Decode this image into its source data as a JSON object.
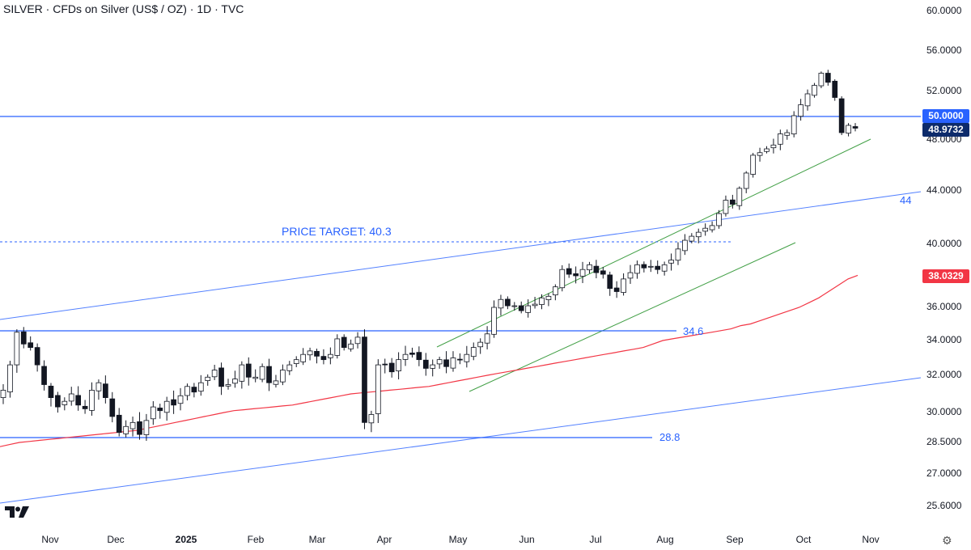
{
  "header": {
    "title": "SILVER · CFDs on Silver (US$ / OZ) · 1D · TVC"
  },
  "chart_data": {
    "type": "candlestick",
    "symbol": "SILVER",
    "ylim": [
      25.6,
      60.0
    ],
    "y_ticks": [
      "60.0000",
      "56.0000",
      "52.0000",
      "48.0000",
      "44.0000",
      "40.0000",
      "36.0000",
      "34.0000",
      "32.0000",
      "30.0000",
      "28.5000",
      "27.0000",
      "25.6000"
    ],
    "x_ticks": [
      "Nov",
      "Dec",
      "2025",
      "Feb",
      "Mar",
      "Apr",
      "May",
      "Jun",
      "Jul",
      "Aug",
      "Sep",
      "Oct",
      "Nov"
    ],
    "last_price": "48.9732",
    "ma_value": "38.0329",
    "horizontal_levels": [
      {
        "label": "50.0000",
        "value": 50.0
      },
      {
        "label": "34.6",
        "value": 34.6
      },
      {
        "label": "28.8",
        "value": 28.8
      }
    ],
    "price_target": {
      "label": "PRICE TARGET: 40.3",
      "value": 40.3
    },
    "trendline_label": "44",
    "closes": [
      31.2,
      32.6,
      34.5,
      33.8,
      33.6,
      32.6,
      31.5,
      30.8,
      30.3,
      30.6,
      31.0,
      30.4,
      30.2,
      31.2,
      31.6,
      30.8,
      29.8,
      29.0,
      29.3,
      29.5,
      28.9,
      29.6,
      30.3,
      30.1,
      30.6,
      30.4,
      30.9,
      31.4,
      31.1,
      31.6,
      31.9,
      32.3,
      31.4,
      31.5,
      31.8,
      32.6,
      31.9,
      31.9,
      32.5,
      31.6,
      31.7,
      32.3,
      32.6,
      32.9,
      33.2,
      33.4,
      33.1,
      32.9,
      33.2,
      34.1,
      33.6,
      33.8,
      34.2,
      29.5,
      29.9,
      32.6,
      32.6,
      32.2,
      32.9,
      33.2,
      33.2,
      32.9,
      32.4,
      32.6,
      32.9,
      32.5,
      33.0,
      32.9,
      33.2,
      33.6,
      33.9,
      34.4,
      36.0,
      36.5,
      36.1,
      36.1,
      35.8,
      36.1,
      36.2,
      36.6,
      36.7,
      37.3,
      38.4,
      38.1,
      38.0,
      38.4,
      38.7,
      38.2,
      38.1,
      37.2,
      37.0,
      37.8,
      38.2,
      38.7,
      38.5,
      38.6,
      38.4,
      38.7,
      39.0,
      39.7,
      40.3,
      40.6,
      40.9,
      41.2,
      41.4,
      42.3,
      43.3,
      43.0,
      44.2,
      45.4,
      46.8,
      47.0,
      47.3,
      47.6,
      48.5,
      48.6,
      50.0,
      50.9,
      51.8,
      52.6,
      53.8,
      52.9,
      51.5,
      48.6,
      49.2,
      48.97
    ],
    "ma200": [
      28.3,
      28.4,
      28.5,
      28.55,
      28.6,
      28.65,
      28.7,
      28.75,
      28.8,
      28.85,
      28.9,
      28.95,
      29.0,
      29.05,
      29.1,
      29.2,
      29.3,
      29.4,
      29.5,
      29.6,
      29.7,
      29.8,
      29.9,
      30.0,
      30.1,
      30.15,
      30.2,
      30.25,
      30.3,
      30.35,
      30.4,
      30.5,
      30.6,
      30.7,
      30.8,
      30.9,
      31.0,
      31.05,
      31.1,
      31.15,
      31.2,
      31.25,
      31.3,
      31.35,
      31.4,
      31.5,
      31.6,
      31.7,
      31.8,
      31.9,
      32.0,
      32.1,
      32.2,
      32.3,
      32.4,
      32.5,
      32.6,
      32.7,
      32.8,
      32.9,
      33.0,
      33.1,
      33.2,
      33.3,
      33.4,
      33.5,
      33.6,
      33.8,
      34.0,
      34.1,
      34.2,
      34.3,
      34.4,
      34.5,
      34.6,
      34.7,
      34.9,
      35.0,
      35.2,
      35.4,
      35.6,
      35.8,
      36.0,
      36.3,
      36.6,
      37.0,
      37.4,
      37.8,
      38.03
    ]
  }
}
